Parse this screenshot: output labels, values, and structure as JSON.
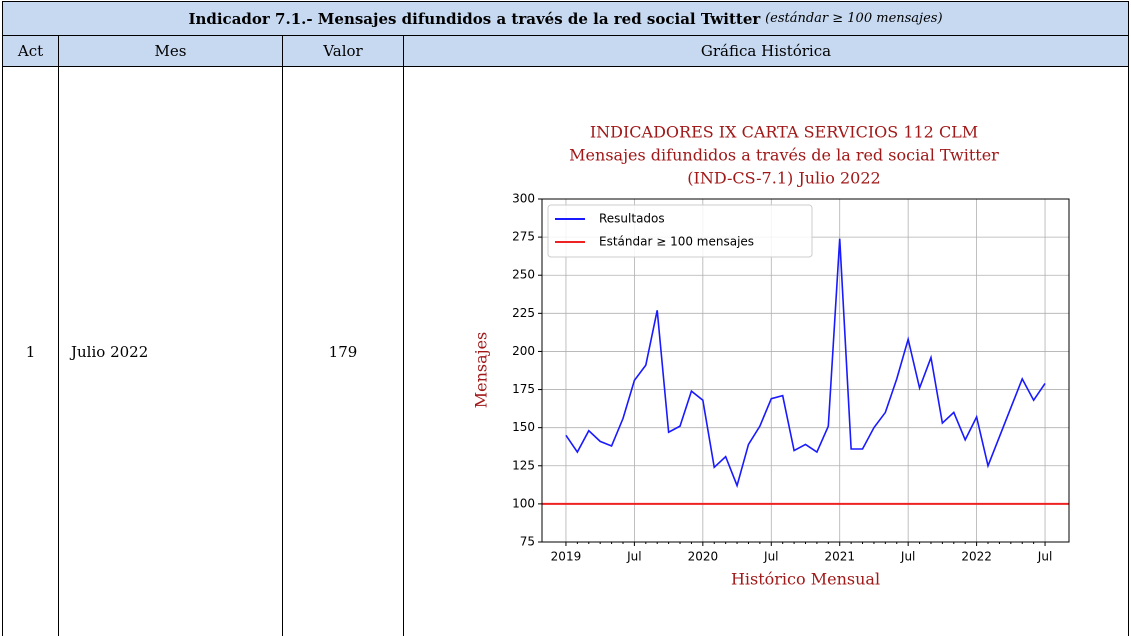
{
  "table": {
    "title": {
      "main": "Indicador 7.1.- Mensajes difundidos a través de la red social Twitter",
      "note": "(estándar ≥ 100 mensajes)"
    },
    "columns": [
      "Act",
      "Mes",
      "Valor",
      "Gráfica Histórica"
    ],
    "rows": [
      [
        "1",
        "Julio 2022",
        "179"
      ]
    ]
  },
  "chart_data": {
    "type": "line",
    "title": [
      "INDICADORES IX CARTA SERVICIOS 112 CLM",
      "Mensajes difundidos a través de la red social Twitter",
      "(IND-CS-7.1) Julio 2022"
    ],
    "y_label": "Mensajes",
    "x_label": "Histórico Mensual",
    "categories": [
      "2019",
      null,
      null,
      null,
      null,
      null,
      "Jul",
      null,
      null,
      null,
      null,
      null,
      "2020",
      null,
      null,
      null,
      null,
      null,
      "Jul",
      null,
      null,
      null,
      null,
      null,
      "2021",
      null,
      null,
      null,
      null,
      null,
      "Jul",
      null,
      null,
      null,
      null,
      null,
      "2022",
      null,
      null,
      null,
      null,
      null,
      "Jul"
    ],
    "series": [
      {
        "name": "Resultados",
        "color": "#1a1aff",
        "values": [
          145,
          134,
          148,
          141,
          138,
          156,
          181,
          191,
          227,
          147,
          151,
          174,
          168,
          124,
          131,
          112,
          139,
          151,
          169,
          171,
          135,
          139,
          134,
          151,
          274,
          136,
          136,
          150,
          160,
          182,
          208,
          176,
          196,
          153,
          160,
          142,
          157,
          125,
          144,
          163,
          182,
          168,
          179
        ]
      }
    ],
    "reference_line": {
      "name": "Estándar ≥ 100 mensajes",
      "value": 100,
      "color": "#ee2222"
    },
    "ylim": [
      75,
      300
    ],
    "yticks": [
      75,
      100,
      125,
      150,
      175,
      200,
      225,
      250,
      275,
      300
    ],
    "grid": true,
    "legend": "upper left"
  }
}
